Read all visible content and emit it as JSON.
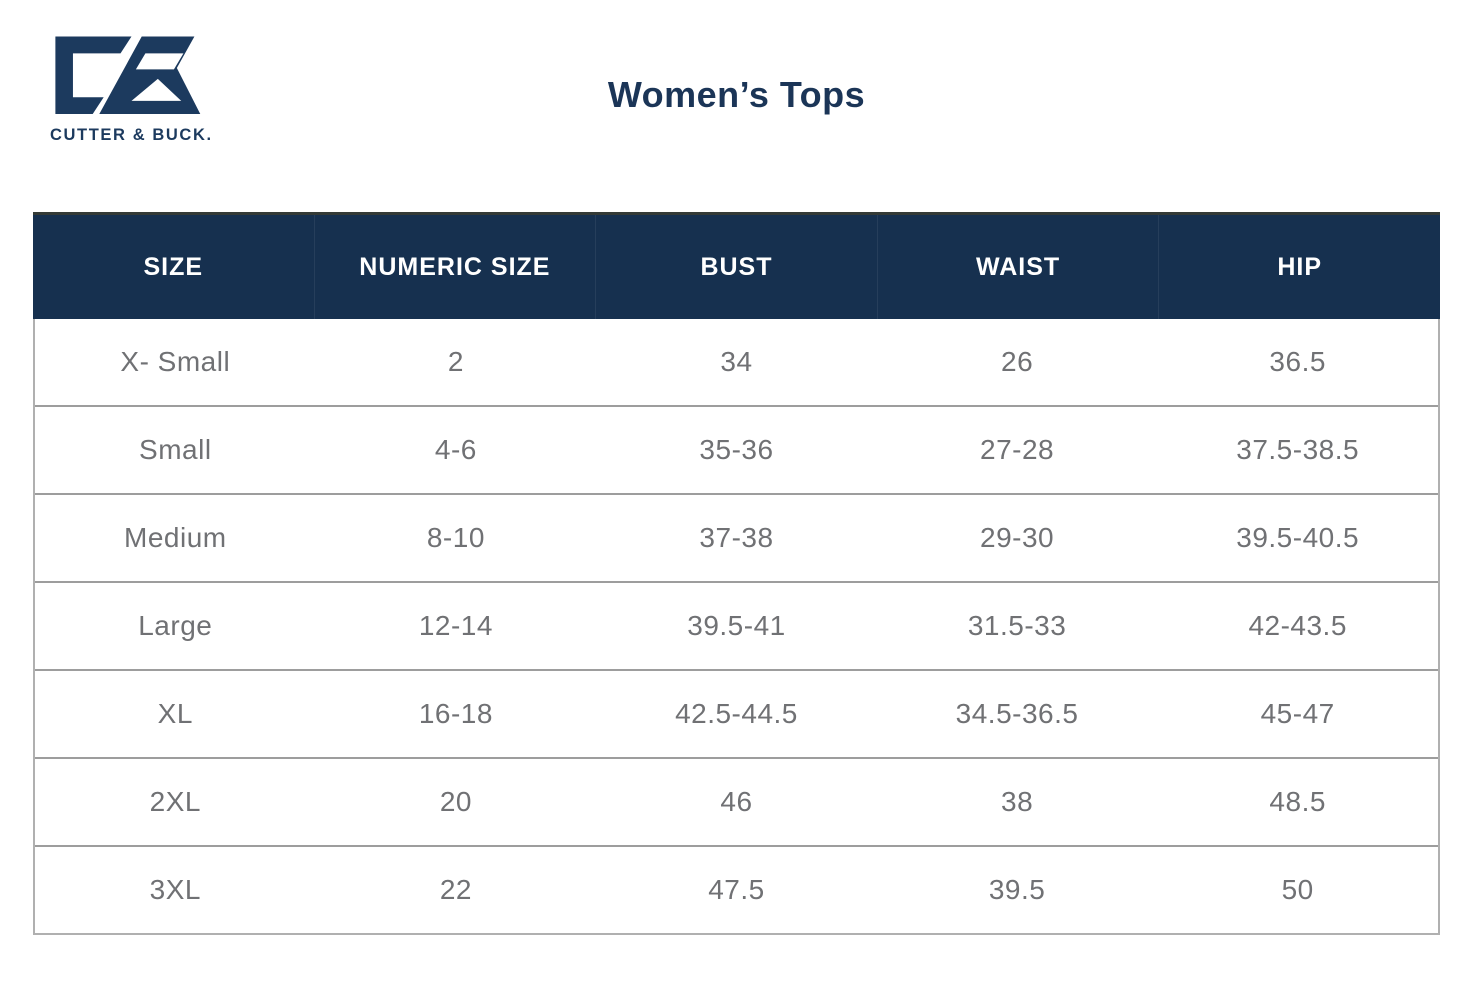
{
  "brand": {
    "name": "CUTTER & BUCK.",
    "logo": "cutter-and-buck-cb-monogram"
  },
  "page": {
    "title": "Women’s Tops"
  },
  "table": {
    "columns": [
      "SIZE",
      "NUMERIC SIZE",
      "BUST",
      "WAIST",
      "HIP"
    ],
    "rows": [
      [
        "X- Small",
        "2",
        "34",
        "26",
        "36.5"
      ],
      [
        "Small",
        "4-6",
        "35-36",
        "27-28",
        "37.5-38.5"
      ],
      [
        "Medium",
        "8-10",
        "37-38",
        "29-30",
        "39.5-40.5"
      ],
      [
        "Large",
        "12-14",
        "39.5-41",
        "31.5-33",
        "42-43.5"
      ],
      [
        "XL",
        "16-18",
        "42.5-44.5",
        "34.5-36.5",
        "45-47"
      ],
      [
        "2XL",
        "20",
        "46",
        "38",
        "48.5"
      ],
      [
        "3XL",
        "22",
        "47.5",
        "39.5",
        "50"
      ]
    ]
  },
  "colors": {
    "header_navy": "#16304f",
    "brand_navy": "#1c3a5e",
    "title_navy": "#1b3557",
    "cell_text_gray": "#707174",
    "row_divider_gray": "#9d9d9d",
    "outer_border_gray": "#b0b0b0"
  }
}
